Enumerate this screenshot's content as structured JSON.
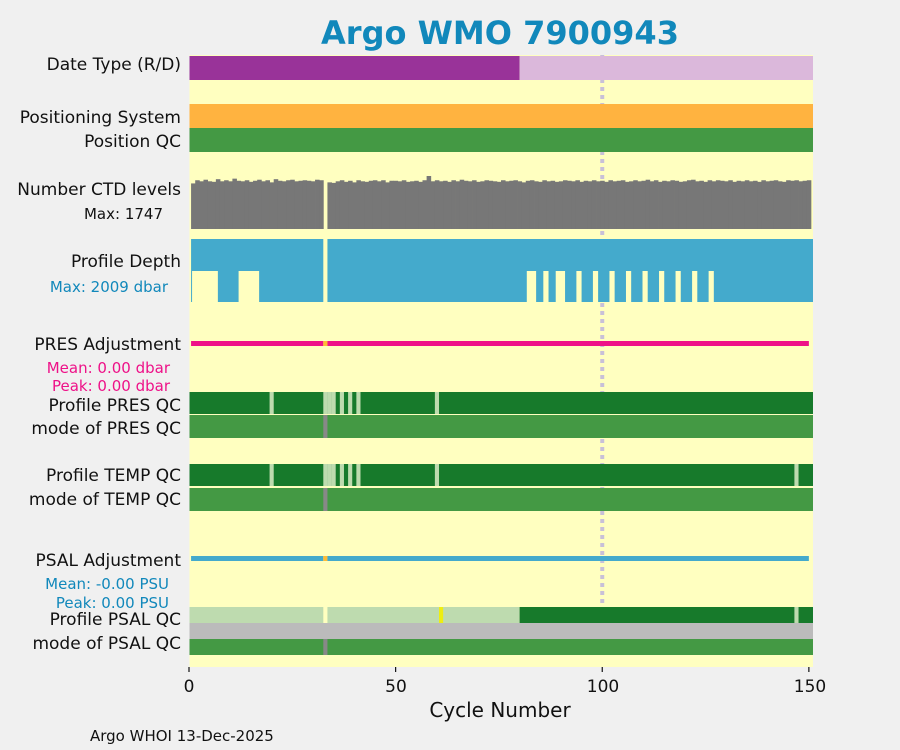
{
  "chart_data": {
    "type": "bar",
    "title": "Argo WMO 7900943",
    "xlabel": "Cycle Number",
    "xlim": [
      0,
      151
    ],
    "xticks": [
      "0",
      "50",
      "100",
      "150"
    ],
    "footer": "Argo WHOI 13-Dec-2025",
    "rows": {
      "date_type": "Date Type (R/D)",
      "positioning_system": "Positioning System",
      "position_qc": "Position QC",
      "num_ctd": "Number CTD levels",
      "num_ctd_max": "Max: 1747",
      "profile_depth": "Profile Depth",
      "profile_depth_max": "Max: 2009 dbar",
      "pres_adj": "PRES Adjustment",
      "pres_adj_mean": "Mean: 0.00 dbar",
      "pres_adj_peak": "Peak: 0.00 dbar",
      "profile_pres_qc": "Profile PRES QC",
      "mode_pres_qc": "mode of PRES QC",
      "profile_temp_qc": "Profile TEMP QC",
      "mode_temp_qc": "mode of TEMP QC",
      "psal_adj": "PSAL Adjustment",
      "psal_adj_mean": "Mean: -0.00 PSU",
      "psal_adj_peak": "Peak: 0.00 PSU",
      "profile_psal_qc": "Profile PSAL QC",
      "mode_psal_qc": "mode of PSAL QC"
    },
    "date_type_realtime_until_cycle": 80,
    "missing_cycle": 33,
    "profile_pres_qc_light_cycles": [
      20,
      33,
      34,
      35,
      37,
      39,
      41,
      60
    ],
    "profile_temp_qc_light_cycles": [
      20,
      33,
      34,
      35,
      37,
      39,
      41,
      60,
      147
    ],
    "profile_psal_qc": {
      "light_until_cycle": 80,
      "yellow_cycle": 61,
      "light_cycles": [
        147
      ]
    },
    "profile_depth_shallow_ranges": [
      [
        1,
        7
      ],
      [
        12,
        17
      ],
      [
        82,
        84
      ],
      [
        86,
        87
      ],
      [
        89,
        91
      ],
      [
        94,
        95
      ],
      [
        98,
        99
      ],
      [
        102,
        103
      ],
      [
        106,
        107
      ],
      [
        110,
        111
      ],
      [
        114,
        115
      ],
      [
        118,
        119
      ],
      [
        122,
        123
      ],
      [
        126,
        127
      ]
    ],
    "profile_depth_deep_ranges": [
      [
        7,
        12
      ],
      [
        17,
        80
      ]
    ],
    "ctd_levels_fraction": [
      0.86,
      0.92,
      0.9,
      0.93,
      0.9,
      0.89,
      0.94,
      0.9,
      0.92,
      0.9,
      0.95,
      0.91,
      0.9,
      0.92,
      0.89,
      0.91,
      0.93,
      0.9,
      0.92,
      0.88,
      0.94,
      0.91,
      0.9,
      0.92,
      0.93,
      0.9,
      0.91,
      0.92,
      0.91,
      0.9,
      0.93,
      0.92,
      0.0,
      0.88,
      0.87,
      0.9,
      0.92,
      0.89,
      0.91,
      0.88,
      0.92,
      0.9,
      0.89,
      0.91,
      0.92,
      0.9,
      0.92,
      0.88,
      0.91,
      0.91,
      0.9,
      0.92,
      0.89,
      0.9,
      0.91,
      0.89,
      0.92,
      1.0,
      0.9,
      0.92,
      0.9,
      0.91,
      0.89,
      0.92,
      0.9,
      0.93,
      0.91,
      0.9,
      0.92,
      0.89,
      0.9,
      0.92,
      0.91,
      0.9,
      0.89,
      0.92,
      0.9,
      0.91,
      0.92,
      0.9,
      0.88,
      0.91,
      0.92,
      0.9,
      0.89,
      0.92,
      0.9,
      0.91,
      0.89,
      0.9,
      0.92,
      0.91,
      0.9,
      0.92,
      0.89,
      0.91,
      0.9,
      0.92,
      0.9,
      0.91,
      0.89,
      0.92,
      0.9,
      0.91,
      0.92,
      0.89,
      0.9,
      0.92,
      0.9,
      0.91,
      0.93,
      0.9,
      0.92,
      0.89,
      0.91,
      0.9,
      0.92,
      0.91,
      0.89,
      0.9,
      0.92,
      0.93,
      0.9,
      0.91,
      0.89,
      0.92,
      0.9,
      0.92,
      0.91,
      0.9,
      0.92,
      0.89,
      0.91,
      0.9,
      0.92,
      0.9,
      0.91,
      0.89,
      0.92,
      0.9,
      0.91,
      0.92,
      0.9,
      0.89,
      0.92,
      0.91,
      0.92,
      0.9,
      0.91,
      0.92
    ],
    "colors": {
      "bg": "#ffffc0",
      "realtime": "#993399",
      "delayed": "#dbb8db",
      "position_system": "#ffb340",
      "qc_good": "#449944",
      "qc_dark": "#177a2b",
      "qc_light": "#bedbaf",
      "qc_gray": "#bbbbbb",
      "ctd": "#777777",
      "depth": "#44aacc",
      "pres_adj": "#ee1188",
      "psal_adj": "#44aacc",
      "title": "#1188bb",
      "yellow": "#eeee11",
      "orange": "#ffbb33",
      "missing": "#888888"
    }
  }
}
